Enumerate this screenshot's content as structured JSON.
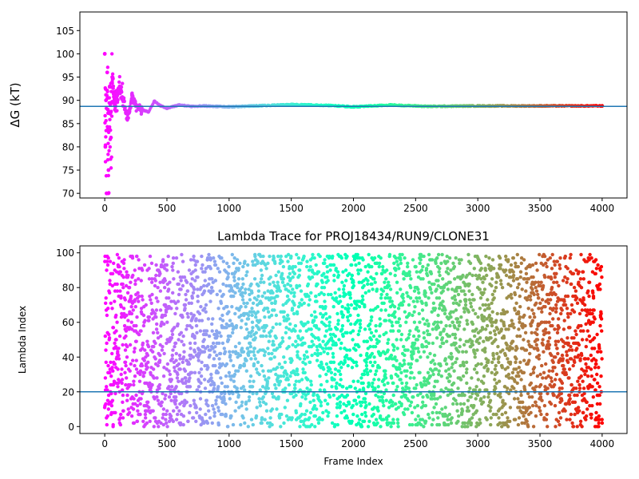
{
  "chart_data": [
    {
      "type": "scatter",
      "title": "",
      "xlabel": "",
      "ylabel": "ΔG (kT)",
      "xlim": [
        -200,
        4200
      ],
      "ylim": [
        69,
        109
      ],
      "xticks": [
        0,
        500,
        1000,
        1500,
        2000,
        2500,
        3000,
        3500,
        4000
      ],
      "yticks": [
        70,
        75,
        80,
        85,
        90,
        95,
        100,
        105
      ],
      "reference_line": 88.7,
      "reference_line_color": "#1f77b4",
      "colormap": "rainbow (red at frame 0 → violet at frame 4000)",
      "series": [
        {
          "name": "",
          "description": "running free-energy estimate per frame; wide scatter (70–100) for the first ~60 frames, damped oscillation to ~300, then converging to ≈88.8",
          "x": [
            0,
            5,
            10,
            15,
            20,
            25,
            30,
            40,
            50,
            60,
            80,
            100,
            120,
            150,
            180,
            200,
            220,
            250,
            300,
            350,
            400,
            450,
            500,
            600,
            700,
            800,
            1000,
            1200,
            1500,
            1800,
            2000,
            2300,
            2600,
            3000,
            3500,
            4000
          ],
          "y": [
            100,
            80,
            90,
            70,
            96,
            88,
            75,
            93,
            82,
            95,
            89,
            91,
            93,
            90,
            86,
            88,
            91,
            89,
            88,
            87.5,
            89.8,
            88.8,
            88.3,
            89,
            88.7,
            88.8,
            88.6,
            88.8,
            89.1,
            88.9,
            88.6,
            89,
            88.7,
            88.8,
            88.8,
            88.8
          ]
        }
      ]
    },
    {
      "type": "scatter",
      "title": "Lambda Trace for PROJ18434/RUN9/CLONE31",
      "xlabel": "Frame Index",
      "ylabel": "Lambda Index",
      "xlim": [
        -200,
        4200
      ],
      "ylim": [
        -4,
        104
      ],
      "xticks": [
        0,
        500,
        1000,
        1500,
        2000,
        2500,
        3000,
        3500,
        4000
      ],
      "yticks": [
        0,
        20,
        40,
        60,
        80,
        100
      ],
      "reference_line": 20,
      "reference_line_color": "#1f77b4",
      "colormap": "rainbow (red at frame 0 → violet at frame 4000)",
      "series": [
        {
          "name": "",
          "description": "one point per frame (0–4000); lambda index roughly uniform over 0–99",
          "n_points": 4000,
          "x_range": [
            0,
            4000
          ],
          "y_range": [
            0,
            99
          ]
        }
      ]
    }
  ]
}
